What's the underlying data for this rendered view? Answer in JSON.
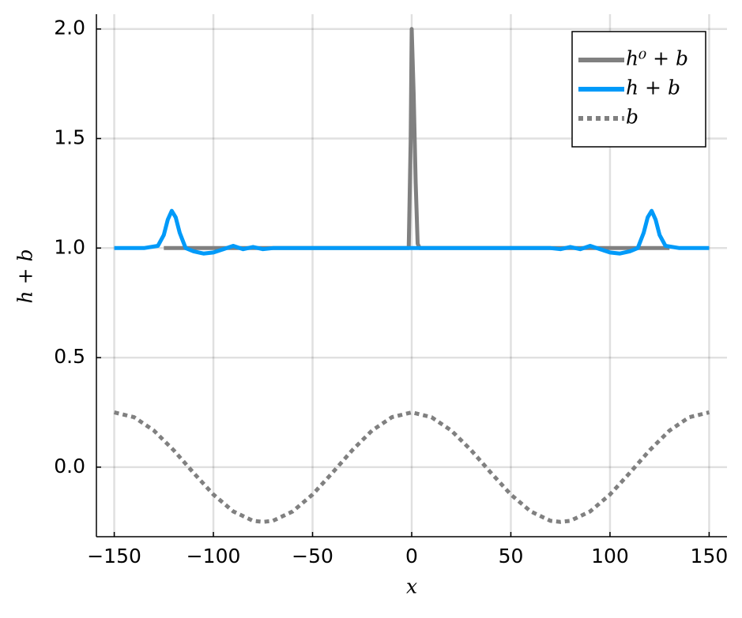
{
  "chart_data": {
    "type": "line",
    "xlabel": "x",
    "ylabel": "h + b",
    "xlim": [
      -159,
      159
    ],
    "ylim": [
      -0.3175,
      2.0675
    ],
    "xticks": [
      {
        "value": -150,
        "label": "−150"
      },
      {
        "value": -100,
        "label": "−100"
      },
      {
        "value": -50,
        "label": "−50"
      },
      0,
      50,
      100,
      150
    ],
    "yticks": [
      {
        "value": 0,
        "label": "0.0"
      },
      {
        "value": 0.5,
        "label": "0.5"
      },
      {
        "value": 1,
        "label": "1.0"
      },
      {
        "value": 1.5,
        "label": "1.5"
      },
      {
        "value": 2,
        "label": "2.0"
      }
    ],
    "grid": true,
    "legend": "top-right",
    "series": [
      {
        "name": "h⁰ + b",
        "color": "#808080",
        "linestyle": "solid",
        "x": [
          -125,
          -1.5,
          -0.5,
          0,
          1,
          2,
          3,
          4,
          130
        ],
        "values": [
          1,
          1,
          1.5,
          2,
          1.7,
          1.3,
          1.02,
          1,
          1
        ]
      },
      {
        "name": "h + b",
        "color": "#009af9",
        "linestyle": "solid",
        "x": [
          -150,
          -135,
          -128,
          -125,
          -123,
          -121,
          -119,
          -117,
          -114,
          -110,
          -105,
          -100,
          -95,
          -90,
          -85,
          -80,
          -75,
          -70,
          -60,
          -40,
          0,
          40,
          60,
          70,
          75,
          80,
          85,
          90,
          95,
          100,
          105,
          110,
          114,
          117,
          119,
          121,
          123,
          125,
          128,
          135,
          150
        ],
        "values": [
          1,
          1,
          1.01,
          1.06,
          1.13,
          1.17,
          1.14,
          1.07,
          1,
          0.985,
          0.975,
          0.98,
          0.995,
          1.01,
          0.995,
          1.005,
          0.995,
          1,
          1,
          1,
          1,
          1,
          1,
          1,
          0.995,
          1.005,
          0.995,
          1.01,
          0.995,
          0.98,
          0.975,
          0.985,
          1,
          1.07,
          1.14,
          1.17,
          1.13,
          1.06,
          1.01,
          1,
          1
        ]
      },
      {
        "name": "b",
        "color": "#808080",
        "linestyle": "dotted",
        "x": [
          -150,
          -140,
          -130,
          -120,
          -110,
          -100,
          -90,
          -80,
          -75,
          -70,
          -60,
          -50,
          -40,
          -30,
          -20,
          -10,
          0,
          10,
          20,
          30,
          40,
          50,
          60,
          70,
          75,
          80,
          90,
          100,
          110,
          120,
          130,
          140,
          150
        ],
        "values": [
          0.25,
          0.228,
          0.167,
          0.077,
          -0.026,
          -0.125,
          -0.202,
          -0.245,
          -0.25,
          -0.245,
          -0.202,
          -0.125,
          -0.026,
          0.077,
          0.167,
          0.228,
          0.25,
          0.228,
          0.167,
          0.077,
          -0.026,
          -0.125,
          -0.202,
          -0.245,
          -0.25,
          -0.245,
          -0.202,
          -0.125,
          -0.026,
          0.077,
          0.167,
          0.228,
          0.25
        ]
      }
    ]
  }
}
